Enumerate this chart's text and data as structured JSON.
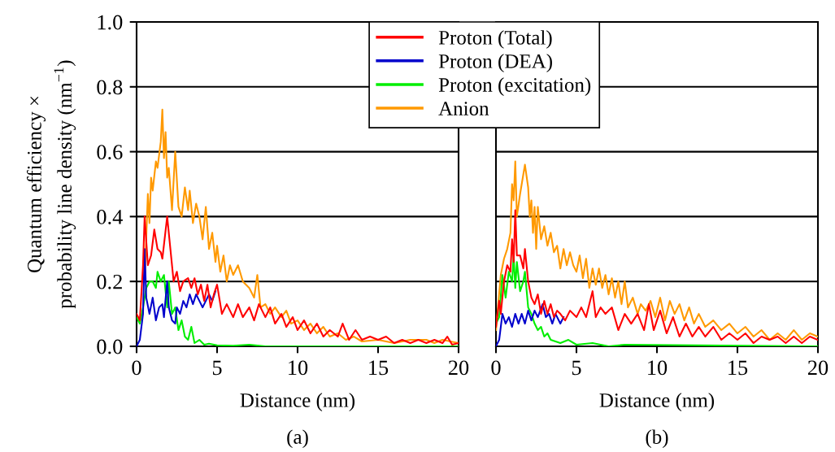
{
  "chart_data": [
    {
      "type": "line",
      "xlabel": "Distance (nm)",
      "ylabel": "Quantum efficiency ×\nprobability line density (nm$^{−1}$)",
      "annotations": [
        "(a)"
      ],
      "xlim": [
        0,
        20
      ],
      "ylim": [
        0,
        1.0
      ],
      "xticks": [
        0,
        5,
        10,
        15,
        20
      ],
      "yticks": [
        {
          "value": 0,
          "label": "0.0"
        },
        0.2,
        0.4,
        0.6,
        0.8,
        {
          "value": 1.0,
          "label": "1.0"
        }
      ],
      "grid": "y",
      "legend": "top",
      "line_style": "solid",
      "marker": "none",
      "series": [
        {
          "name": "Proton (Total)",
          "color": "#ff0000",
          "x": [
            0,
            0.2,
            0.4,
            0.5,
            0.7,
            0.9,
            1.1,
            1.3,
            1.5,
            1.6,
            1.9,
            2.1,
            2.3,
            2.5,
            2.7,
            2.9,
            3.2,
            3.4,
            3.6,
            3.8,
            4.0,
            4.2,
            4.4,
            4.6,
            4.8,
            5.0,
            5.3,
            5.6,
            6.0,
            6.3,
            6.6,
            7.0,
            7.3,
            7.6,
            8.0,
            8.3,
            8.6,
            9.0,
            9.3,
            9.7,
            10.0,
            10.4,
            10.8,
            11.2,
            11.6,
            12.0,
            12.5,
            12.8,
            13.2,
            13.6,
            14.0,
            14.5,
            15.0,
            15.5,
            16,
            16.5,
            17,
            17.5,
            18,
            18.5,
            19,
            19.3,
            19.6,
            20
          ],
          "values": [
            0.1,
            0.08,
            0.25,
            0.4,
            0.25,
            0.28,
            0.36,
            0.3,
            0.29,
            0.27,
            0.4,
            0.3,
            0.2,
            0.23,
            0.17,
            0.2,
            0.21,
            0.18,
            0.21,
            0.16,
            0.19,
            0.14,
            0.19,
            0.12,
            0.16,
            0.19,
            0.1,
            0.13,
            0.09,
            0.13,
            0.09,
            0.12,
            0.08,
            0.13,
            0.09,
            0.12,
            0.07,
            0.1,
            0.06,
            0.09,
            0.05,
            0.08,
            0.04,
            0.07,
            0.03,
            0.05,
            0.03,
            0.07,
            0.02,
            0.05,
            0.02,
            0.03,
            0.02,
            0.03,
            0.01,
            0.02,
            0.01,
            0.02,
            0.01,
            0.02,
            0.01,
            0.03,
            0.005,
            0.01
          ]
        },
        {
          "name": "Proton (DEA)",
          "color": "#0000cc",
          "x": [
            0,
            0.2,
            0.4,
            0.5,
            0.6,
            0.8,
            1.0,
            1.2,
            1.4,
            1.6,
            1.7,
            1.9,
            2.0,
            2.2,
            2.4,
            2.5,
            2.7,
            2.9,
            3.1,
            3.3,
            3.5,
            3.7,
            3.9,
            4.1,
            4.3,
            4.5,
            4.7,
            4.9
          ],
          "values": [
            0.0,
            0.02,
            0.1,
            0.3,
            0.15,
            0.1,
            0.15,
            0.08,
            0.12,
            0.13,
            0.09,
            0.2,
            0.12,
            0.08,
            0.07,
            0.12,
            0.1,
            0.14,
            0.12,
            0.16,
            0.13,
            0.16,
            0.14,
            0.12,
            0.14,
            0.16,
            0.14,
            0.17
          ]
        },
        {
          "name": "Proton (excitation)",
          "color": "#00ee00",
          "x": [
            0,
            0.2,
            0.4,
            0.6,
            0.8,
            1.0,
            1.2,
            1.3,
            1.5,
            1.7,
            1.9,
            2.0,
            2.2,
            2.4,
            2.6,
            2.8,
            3.0,
            3.2,
            3.4,
            3.6,
            3.9,
            4.2,
            4.5,
            5,
            6,
            7,
            8,
            20
          ],
          "values": [
            0.09,
            0.07,
            0.12,
            0.18,
            0.2,
            0.2,
            0.18,
            0.23,
            0.2,
            0.22,
            0.12,
            0.2,
            0.1,
            0.12,
            0.05,
            0.08,
            0.03,
            0.02,
            0.06,
            0.01,
            0.02,
            0.005,
            0.008,
            0.003,
            0.002,
            0.005,
            0.0,
            0.0
          ]
        },
        {
          "name": "Anion",
          "color": "#ff9900",
          "x": [
            0.5,
            0.7,
            0.8,
            0.9,
            1.0,
            1.2,
            1.3,
            1.5,
            1.6,
            1.7,
            1.8,
            1.9,
            2.0,
            2.2,
            2.4,
            2.6,
            2.8,
            3.0,
            3.2,
            3.3,
            3.5,
            3.7,
            3.9,
            4.1,
            4.3,
            4.5,
            4.7,
            4.9,
            5.0,
            5.2,
            5.4,
            5.6,
            5.8,
            6.0,
            6.3,
            6.6,
            7.0,
            7.3,
            7.5,
            7.7,
            8.0,
            8.3,
            8.6,
            9.0,
            9.3,
            9.6,
            10,
            10.4,
            10.8,
            11.2,
            11.6,
            12.0,
            12.5,
            13.0,
            13.5,
            14,
            15,
            16,
            17,
            18,
            18.5,
            19,
            20
          ],
          "values": [
            0.2,
            0.47,
            0.38,
            0.52,
            0.48,
            0.57,
            0.55,
            0.63,
            0.73,
            0.58,
            0.66,
            0.52,
            0.55,
            0.42,
            0.6,
            0.43,
            0.4,
            0.49,
            0.42,
            0.48,
            0.38,
            0.44,
            0.4,
            0.33,
            0.43,
            0.3,
            0.35,
            0.26,
            0.31,
            0.23,
            0.28,
            0.2,
            0.25,
            0.22,
            0.25,
            0.2,
            0.18,
            0.15,
            0.22,
            0.12,
            0.13,
            0.1,
            0.12,
            0.09,
            0.11,
            0.07,
            0.08,
            0.05,
            0.07,
            0.04,
            0.06,
            0.03,
            0.04,
            0.02,
            0.03,
            0.015,
            0.02,
            0.01,
            0.02,
            0.02,
            0.01,
            0.02,
            0.01
          ]
        }
      ]
    },
    {
      "type": "line",
      "xlabel": "Distance (nm)",
      "annotations": [
        "(b)"
      ],
      "xlim": [
        0,
        20
      ],
      "ylim": [
        0,
        1.0
      ],
      "xticks": [
        0,
        5,
        10,
        15,
        20
      ],
      "yticks": [
        0,
        0.2,
        0.4,
        0.6,
        0.8,
        1.0
      ],
      "tick_labels": "x",
      "grid": "y",
      "line_style": "solid",
      "marker": "none",
      "series": [
        {
          "color": "#ff0000",
          "x": [
            0,
            0.2,
            0.3,
            0.5,
            0.7,
            0.9,
            1.0,
            1.1,
            1.2,
            1.3,
            1.5,
            1.7,
            1.8,
            2.0,
            2.2,
            2.4,
            2.6,
            2.8,
            3.0,
            3.2,
            3.4,
            3.6,
            3.8,
            4.0,
            4.3,
            4.6,
            5.0,
            5.3,
            5.6,
            6.0,
            6.2,
            6.5,
            6.8,
            7.2,
            7.6,
            8.0,
            8.4,
            8.8,
            9.2,
            9.5,
            9.8,
            10.2,
            10.6,
            11.0,
            11.4,
            11.8,
            12.2,
            12.6,
            13.0,
            13.5,
            14.0,
            14.5,
            15,
            15.5,
            16,
            16.5,
            17,
            17.5,
            18,
            18.5,
            19,
            19.5,
            20
          ],
          "values": [
            0.06,
            0.14,
            0.1,
            0.2,
            0.25,
            0.23,
            0.33,
            0.26,
            0.42,
            0.28,
            0.28,
            0.24,
            0.3,
            0.2,
            0.15,
            0.13,
            0.16,
            0.1,
            0.14,
            0.1,
            0.13,
            0.09,
            0.11,
            0.1,
            0.08,
            0.11,
            0.09,
            0.12,
            0.09,
            0.17,
            0.09,
            0.12,
            0.1,
            0.12,
            0.05,
            0.1,
            0.07,
            0.1,
            0.05,
            0.13,
            0.05,
            0.11,
            0.04,
            0.09,
            0.03,
            0.07,
            0.03,
            0.06,
            0.03,
            0.06,
            0.02,
            0.04,
            0.02,
            0.04,
            0.01,
            0.03,
            0.02,
            0.03,
            0.01,
            0.03,
            0.01,
            0.03,
            0.02
          ]
        },
        {
          "color": "#0000cc",
          "x": [
            0,
            0.2,
            0.3,
            0.4,
            0.6,
            0.8,
            1.0,
            1.2,
            1.4,
            1.6,
            1.8,
            2.0,
            2.2,
            2.4,
            2.6,
            2.9,
            3.1,
            3.3,
            3.5,
            3.7,
            4.0,
            4.2
          ],
          "values": [
            0.0,
            0.02,
            0.06,
            0.1,
            0.07,
            0.09,
            0.06,
            0.1,
            0.07,
            0.1,
            0.07,
            0.11,
            0.08,
            0.11,
            0.09,
            0.13,
            0.09,
            0.1,
            0.07,
            0.1,
            0.07,
            0.09
          ]
        },
        {
          "color": "#00ee00",
          "x": [
            0,
            0.2,
            0.4,
            0.6,
            0.8,
            1.0,
            1.1,
            1.2,
            1.3,
            1.5,
            1.7,
            1.8,
            2.0,
            2.2,
            2.4,
            2.6,
            2.8,
            3.0,
            3.2,
            3.4,
            4.0,
            4.5,
            5,
            6,
            7,
            8,
            20
          ],
          "values": [
            0.07,
            0.09,
            0.22,
            0.15,
            0.23,
            0.2,
            0.28,
            0.18,
            0.26,
            0.17,
            0.2,
            0.23,
            0.12,
            0.1,
            0.07,
            0.05,
            0.06,
            0.03,
            0.04,
            0.02,
            0.01,
            0.02,
            0.005,
            0.01,
            0.0,
            0.005,
            0.0
          ]
        },
        {
          "color": "#ff9900",
          "x": [
            0,
            0.3,
            0.5,
            0.7,
            0.9,
            1.0,
            1.1,
            1.2,
            1.3,
            1.5,
            1.7,
            1.8,
            2.0,
            2.1,
            2.2,
            2.3,
            2.4,
            2.5,
            2.6,
            2.8,
            3.0,
            3.2,
            3.4,
            3.6,
            3.8,
            4.0,
            4.2,
            4.4,
            4.6,
            4.8,
            5.0,
            5.2,
            5.4,
            5.6,
            5.8,
            6.0,
            6.2,
            6.4,
            6.6,
            6.8,
            7.0,
            7.2,
            7.4,
            7.6,
            7.8,
            8.0,
            8.2,
            8.5,
            8.8,
            9.0,
            9.3,
            9.6,
            9.9,
            10.2,
            10.5,
            10.8,
            11.1,
            11.4,
            11.7,
            12.0,
            12.3,
            12.6,
            13.0,
            13.5,
            14.0,
            14.5,
            15,
            15.5,
            16,
            16.5,
            17,
            17.5,
            18,
            18.5,
            19,
            19.5,
            20
          ],
          "values": [
            0.05,
            0.22,
            0.27,
            0.3,
            0.35,
            0.5,
            0.45,
            0.57,
            0.4,
            0.47,
            0.53,
            0.56,
            0.49,
            0.4,
            0.45,
            0.35,
            0.43,
            0.3,
            0.43,
            0.33,
            0.37,
            0.31,
            0.35,
            0.29,
            0.31,
            0.24,
            0.3,
            0.25,
            0.29,
            0.25,
            0.23,
            0.28,
            0.21,
            0.27,
            0.18,
            0.24,
            0.19,
            0.24,
            0.18,
            0.22,
            0.16,
            0.21,
            0.15,
            0.2,
            0.13,
            0.2,
            0.12,
            0.15,
            0.1,
            0.13,
            0.11,
            0.14,
            0.09,
            0.15,
            0.08,
            0.14,
            0.1,
            0.13,
            0.08,
            0.12,
            0.07,
            0.1,
            0.06,
            0.08,
            0.05,
            0.07,
            0.04,
            0.06,
            0.03,
            0.05,
            0.02,
            0.04,
            0.02,
            0.05,
            0.02,
            0.04,
            0.03
          ]
        }
      ]
    }
  ]
}
